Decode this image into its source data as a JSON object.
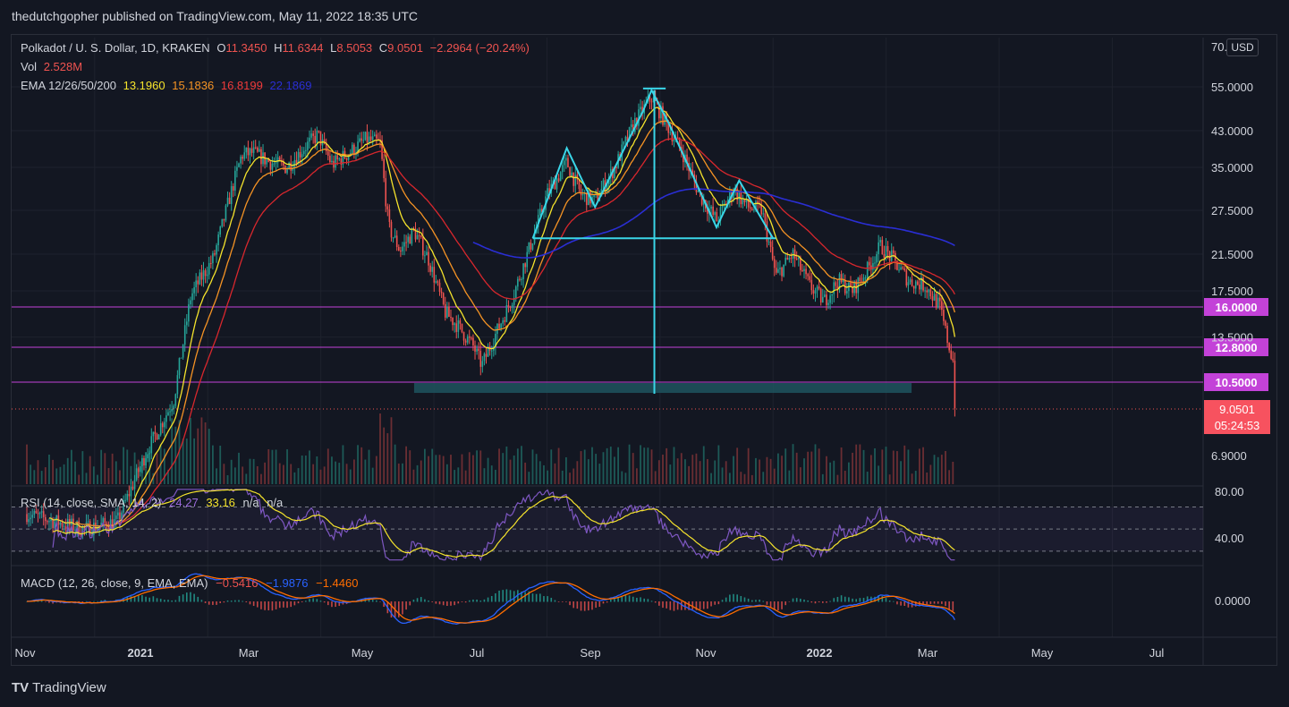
{
  "header": {
    "published": "thedutchgopher published on TradingView.com, May 11, 2022 18:35 UTC"
  },
  "legend": {
    "title": "Polkadot / U. S. Dollar, 1D, KRAKEN",
    "open_label": "O",
    "open": "11.3450",
    "high_label": "H",
    "high": "11.6344",
    "low_label": "L",
    "low": "8.5053",
    "close_label": "C",
    "close": "9.0501",
    "change": "−2.2964 (−20.24%)",
    "vol_label": "Vol",
    "vol": "2.528M",
    "ema_label": "EMA 12/26/50/200",
    "ema12": "13.1960",
    "ema26": "15.1836",
    "ema50": "16.8199",
    "ema200": "22.1869"
  },
  "currency": "USD",
  "rsi": {
    "label": "RSI (14, close, SMA, 14, 2)",
    "v1": "24.27",
    "v2": "33.16",
    "v3": "n/a",
    "v4": "n/a"
  },
  "macd": {
    "label": "MACD (12, 26, close, 9, EMA, EMA)",
    "v1": "−0.5416",
    "v2": "−1.9876",
    "v3": "−1.4460"
  },
  "footer": {
    "brand": "TradingView"
  },
  "colors": {
    "up": "#26a69a",
    "down": "#ef5350",
    "ema12": "#f5e32c",
    "ema26": "#f59324",
    "ema50": "#d8272d",
    "ema200": "#2a2ed4",
    "pattern": "#3ad6e8",
    "levels": "#c342d8"
  },
  "chart_data": {
    "type": "candlestick",
    "price_scale": "log",
    "price_axis_ticks": [
      "70.0000",
      "55.0000",
      "43.0000",
      "35.0000",
      "27.5000",
      "21.5000",
      "17.5000",
      "13.5000",
      "6.9000"
    ],
    "level_labels": [
      "16.0000",
      "12.8000",
      "10.5000"
    ],
    "last_price": "9.0501",
    "countdown": "05:24:53",
    "time_axis_ticks": [
      "Nov",
      "2021",
      "Mar",
      "May",
      "Jul",
      "Sep",
      "Nov",
      "2022",
      "Mar",
      "May",
      "Jul"
    ],
    "rsi_axis_ticks": [
      "80.00",
      "40.00"
    ],
    "macd_axis_ticks": [
      "0.0000"
    ],
    "anchors": [
      {
        "month": 0,
        "price": 5.0
      },
      {
        "month": 1.0,
        "price": 4.6
      },
      {
        "month": 1.6,
        "price": 4.8
      },
      {
        "month": 2.1,
        "price": 7.0
      },
      {
        "month": 2.6,
        "price": 9.5
      },
      {
        "month": 2.9,
        "price": 17.0
      },
      {
        "month": 3.05,
        "price": 18.5
      },
      {
        "month": 3.3,
        "price": 21.0
      },
      {
        "month": 3.6,
        "price": 30.0
      },
      {
        "month": 3.8,
        "price": 37.5
      },
      {
        "month": 4.0,
        "price": 38.0
      },
      {
        "month": 4.3,
        "price": 36.0
      },
      {
        "month": 4.6,
        "price": 35.0
      },
      {
        "month": 4.9,
        "price": 39.0
      },
      {
        "month": 5.15,
        "price": 42.0
      },
      {
        "month": 5.4,
        "price": 35.5
      },
      {
        "month": 5.7,
        "price": 38.0
      },
      {
        "month": 6.0,
        "price": 41.0
      },
      {
        "month": 6.25,
        "price": 40.0
      },
      {
        "month": 6.4,
        "price": 25.0
      },
      {
        "month": 6.6,
        "price": 22.0
      },
      {
        "month": 6.85,
        "price": 24.5
      },
      {
        "month": 7.1,
        "price": 21.0
      },
      {
        "month": 7.4,
        "price": 15.5
      },
      {
        "month": 7.6,
        "price": 14.5
      },
      {
        "month": 7.9,
        "price": 12.8
      },
      {
        "month": 8.05,
        "price": 11.5
      },
      {
        "month": 8.3,
        "price": 13.8
      },
      {
        "month": 8.6,
        "price": 17.0
      },
      {
        "month": 8.95,
        "price": 23.5
      },
      {
        "month": 9.2,
        "price": 30.0
      },
      {
        "month": 9.55,
        "price": 36.0
      },
      {
        "month": 9.8,
        "price": 30.0
      },
      {
        "month": 10.05,
        "price": 29.0
      },
      {
        "month": 10.4,
        "price": 35.0
      },
      {
        "month": 10.75,
        "price": 45.0
      },
      {
        "month": 11.05,
        "price": 52.0
      },
      {
        "month": 11.3,
        "price": 45.0
      },
      {
        "month": 11.6,
        "price": 38.0
      },
      {
        "month": 11.9,
        "price": 30.0
      },
      {
        "month": 12.2,
        "price": 26.0
      },
      {
        "month": 12.5,
        "price": 31.0
      },
      {
        "month": 12.75,
        "price": 28.0
      },
      {
        "month": 13.0,
        "price": 27.5
      },
      {
        "month": 13.25,
        "price": 19.0
      },
      {
        "month": 13.55,
        "price": 21.5
      },
      {
        "month": 13.85,
        "price": 18.0
      },
      {
        "month": 14.1,
        "price": 16.5
      },
      {
        "month": 14.35,
        "price": 18.5
      },
      {
        "month": 14.6,
        "price": 17.5
      },
      {
        "month": 14.85,
        "price": 19.5
      },
      {
        "month": 15.1,
        "price": 22.5
      },
      {
        "month": 15.3,
        "price": 21.0
      },
      {
        "month": 15.6,
        "price": 18.5
      },
      {
        "month": 15.9,
        "price": 18.0
      },
      {
        "month": 16.15,
        "price": 16.0
      },
      {
        "month": 16.3,
        "price": 13.0
      },
      {
        "month": 16.4,
        "price": 11.6
      },
      {
        "month": 16.42,
        "price": 9.05
      }
    ],
    "horizontal_levels": [
      16.0,
      12.8,
      10.5
    ],
    "support_zone": {
      "from_month": 6.85,
      "to_month": 15.65,
      "low": 10.0,
      "high": 10.6
    },
    "pattern_polyline": [
      {
        "month": 8.95,
        "price": 23.5
      },
      {
        "month": 9.55,
        "price": 39.0
      },
      {
        "month": 10.05,
        "price": 28.0
      },
      {
        "month": 10.9,
        "price": 48.0
      },
      {
        "month": 11.05,
        "price": 54.0
      },
      {
        "month": 11.35,
        "price": 45.0
      },
      {
        "month": 12.2,
        "price": 25.0
      },
      {
        "month": 12.6,
        "price": 32.5
      },
      {
        "month": 13.2,
        "price": 23.5
      }
    ],
    "neckline": {
      "from_month": 8.95,
      "to_month": 13.25,
      "price": 23.5
    },
    "target": {
      "month": 11.1,
      "top": 54.0,
      "bottom": 10.0
    },
    "top_marker": {
      "from_month": 10.9,
      "to_month": 11.3,
      "price": 54.5
    }
  }
}
